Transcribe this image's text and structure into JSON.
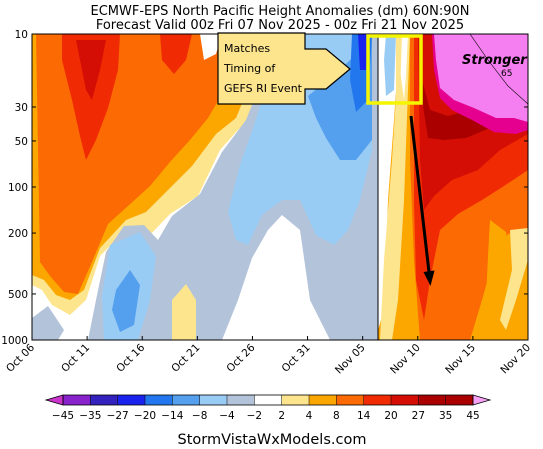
{
  "chart_data": {
    "type": "heatmap",
    "title": "ECMWF-EPS North Pacific Height Anomalies (dm) 60N:90N",
    "subtitle": "Forecast Valid 00z Fri 07 Nov 2025 - 00z Fri 21 Nov 2025",
    "x_tick_labels": [
      "Oct 06",
      "Oct 11",
      "Oct 16",
      "Oct 21",
      "Oct 26",
      "Oct 31",
      "Nov 05",
      "Nov 10",
      "Nov 15",
      "Nov 20"
    ],
    "x_range": [
      "Oct 06",
      "Nov 20"
    ],
    "y_tick_labels": [
      "10",
      "30",
      "50",
      "100",
      "200",
      "500",
      "1000"
    ],
    "y_range_hpa": [
      10,
      1000
    ],
    "y_scale": "log (inverted)",
    "colorbar_levels": [
      -45,
      -35,
      -27,
      -20,
      -14,
      -8,
      -4,
      -2,
      2,
      4,
      8,
      14,
      20,
      27,
      35,
      45
    ],
    "colorbar_labels": [
      "−45",
      "−35",
      "−27",
      "−20",
      "−14",
      "−8",
      "−4",
      "−2",
      "2",
      "4",
      "8",
      "14",
      "20",
      "27",
      "35",
      "45"
    ],
    "colorbar_colors": [
      "#cc33cc",
      "#8822cc",
      "#3322bb",
      "#1a22ee",
      "#2277ee",
      "#55a0ee",
      "#99ccf5",
      "#b3c3da",
      "#ffffff",
      "#fde58e",
      "#fca700",
      "#fc6a03",
      "#f02a02",
      "#d40e04",
      "#aa0000",
      "#f5a0f5"
    ],
    "forecast_start_divider": "Nov 06",
    "annotations": {
      "callout_lines": [
        "Matches",
        "Timing of",
        "GEFS RI Event"
      ],
      "stronger": "Stronger",
      "contour_label": "65"
    },
    "watermark": "StormVistaWxModels.com"
  }
}
